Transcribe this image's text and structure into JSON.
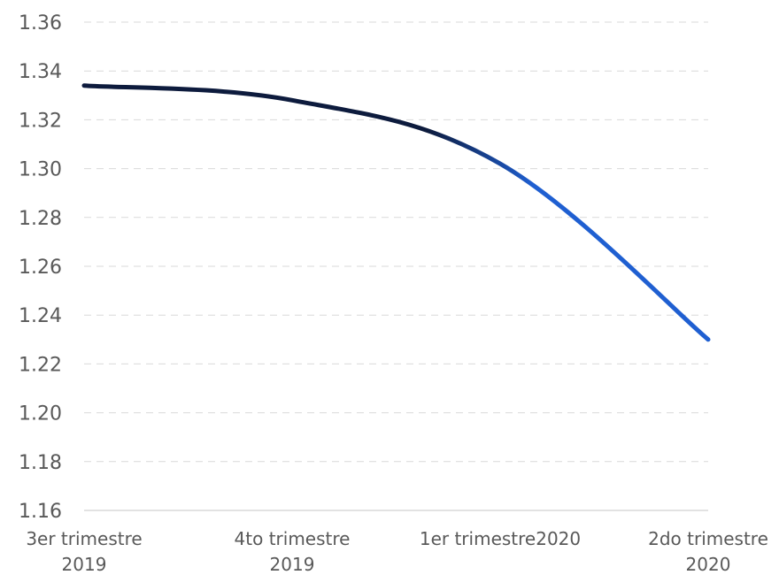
{
  "chart_data": {
    "type": "line",
    "title": "",
    "xlabel": "",
    "ylabel": "",
    "categories": [
      [
        "3er trimestre",
        "2019"
      ],
      [
        "4to trimestre",
        "2019"
      ],
      [
        "1er trimestre2020"
      ],
      [
        "2do trimestre",
        "2020"
      ]
    ],
    "series": [
      {
        "values": [
          1.334,
          1.328,
          1.302,
          1.23
        ]
      }
    ],
    "ylim": [
      1.16,
      1.36
    ],
    "ytick_step": 0.02,
    "ytick_labels": [
      "1.16",
      "1.18",
      "1.20",
      "1.22",
      "1.24",
      "1.26",
      "1.28",
      "1.30",
      "1.32",
      "1.34",
      "1.36"
    ],
    "grid": true,
    "legend": "none",
    "colors": {
      "line_start": "#0d1b3d",
      "line_end": "#1f5fd1",
      "grid": "#d9d9d9",
      "text": "#595959"
    }
  }
}
